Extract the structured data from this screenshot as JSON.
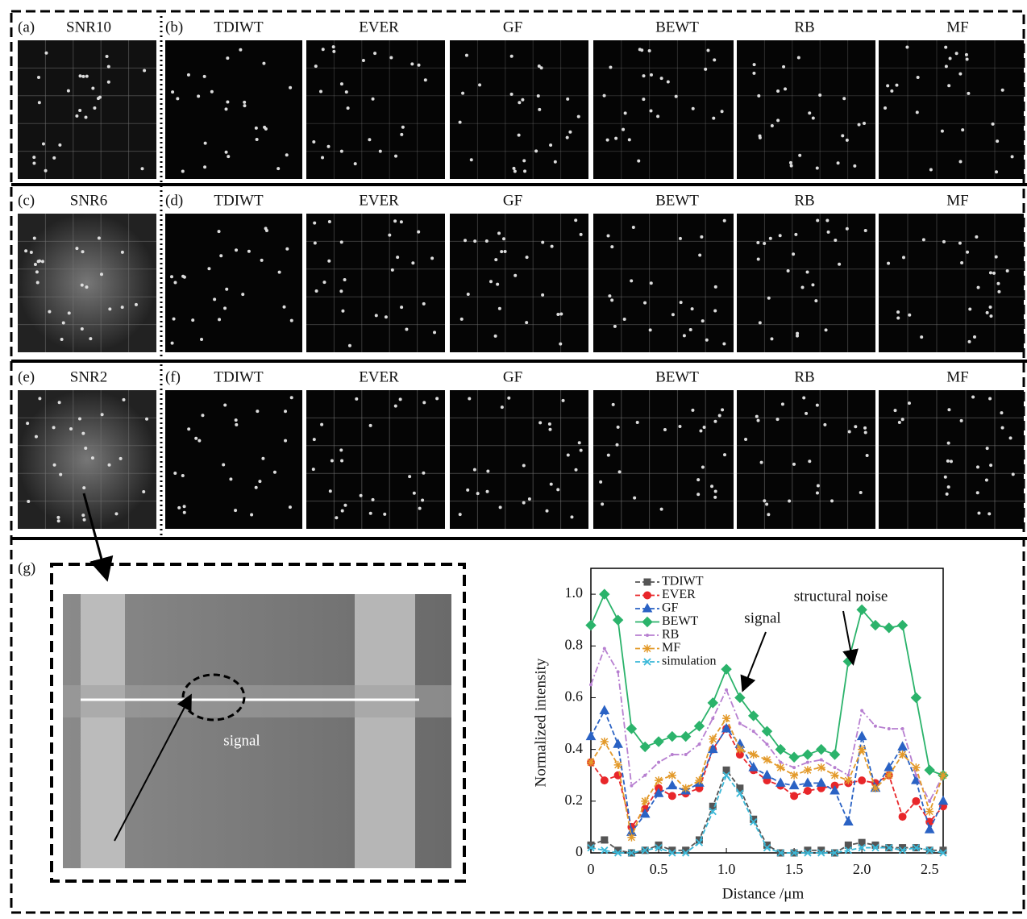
{
  "rows": [
    {
      "left_tag": "(a)",
      "left_title": "SNR10",
      "right_tag": "(b)",
      "titles": [
        "TDIWT",
        "EVER",
        "GF",
        "BEWT",
        "RB",
        "MF"
      ]
    },
    {
      "left_tag": "(c)",
      "left_title": "SNR6",
      "right_tag": "(d)",
      "titles": [
        "TDIWT",
        "EVER",
        "GF",
        "BEWT",
        "RB",
        "MF"
      ]
    },
    {
      "left_tag": "(e)",
      "left_title": "SNR2",
      "right_tag": "(f)",
      "titles": [
        "TDIWT",
        "EVER",
        "GF",
        "BEWT",
        "RB",
        "MF"
      ]
    }
  ],
  "zoom": {
    "tag": "(g)",
    "annotation": "signal"
  },
  "chart_data": {
    "type": "line",
    "x_label": "Distance /μm",
    "y_label": "Normalized intensity",
    "annotations": [
      "signal",
      "structural noise"
    ],
    "x": [
      0,
      0.1,
      0.2,
      0.3,
      0.4,
      0.5,
      0.6,
      0.7,
      0.8,
      0.9,
      1.0,
      1.1,
      1.2,
      1.3,
      1.4,
      1.5,
      1.6,
      1.7,
      1.8,
      1.9,
      2.0,
      2.1,
      2.2,
      2.3,
      2.4,
      2.5,
      2.6
    ],
    "xlim": [
      0,
      2.6
    ],
    "xticks": [
      0,
      0.5,
      {
        "value": 1,
        "label": "1.0"
      },
      1.5,
      {
        "value": 2,
        "label": "2.0"
      },
      2.5
    ],
    "ylim": [
      0,
      1.1
    ],
    "yticks": [
      0,
      0.2,
      0.4,
      0.6,
      0.8,
      {
        "value": 1,
        "label": "1.0"
      }
    ],
    "legend": "top-left",
    "series": [
      {
        "name": "TDIWT",
        "color": "#555555",
        "marker": "square",
        "line_style": "dashed",
        "values": [
          0.03,
          0.05,
          0.01,
          0,
          0.01,
          0.03,
          0.01,
          0.01,
          0.05,
          0.18,
          0.32,
          0.25,
          0.13,
          0.03,
          0,
          0,
          0.01,
          0.01,
          0,
          0.03,
          0.04,
          0.03,
          0.02,
          0.02,
          0.02,
          0.01,
          0.01
        ]
      },
      {
        "name": "EVER",
        "color": "#e8262a",
        "marker": "circle",
        "line_style": "dashed",
        "values": [
          0.35,
          0.28,
          0.3,
          0.1,
          0.17,
          0.25,
          0.22,
          0.23,
          0.25,
          0.4,
          0.48,
          0.38,
          0.32,
          0.28,
          0.26,
          0.22,
          0.24,
          0.25,
          0.26,
          0.27,
          0.28,
          0.27,
          0.3,
          0.14,
          0.2,
          0.12,
          0.18
        ]
      },
      {
        "name": "GF",
        "color": "#2a62c4",
        "marker": "triangle",
        "line_style": "dashed",
        "values": [
          0.45,
          0.55,
          0.42,
          0.08,
          0.15,
          0.23,
          0.26,
          0.24,
          0.27,
          0.4,
          0.48,
          0.42,
          0.33,
          0.3,
          0.27,
          0.26,
          0.27,
          0.27,
          0.24,
          0.12,
          0.45,
          0.25,
          0.33,
          0.41,
          0.28,
          0.09,
          0.2
        ]
      },
      {
        "name": "BEWT",
        "color": "#2bb36b",
        "marker": "diamond",
        "line_style": "solid",
        "values": [
          0.88,
          1.0,
          0.9,
          0.48,
          0.41,
          0.43,
          0.45,
          0.45,
          0.49,
          0.58,
          0.71,
          0.6,
          0.53,
          0.47,
          0.4,
          0.37,
          0.38,
          0.4,
          0.38,
          0.74,
          0.94,
          0.88,
          0.87,
          0.88,
          0.6,
          0.32,
          0.3
        ]
      },
      {
        "name": "RB",
        "color": "#b77fd0",
        "marker": "none",
        "line_style": "dashdot",
        "values": [
          0.65,
          0.79,
          0.7,
          0.26,
          0.3,
          0.35,
          0.38,
          0.38,
          0.42,
          0.52,
          0.63,
          0.5,
          0.47,
          0.42,
          0.35,
          0.33,
          0.35,
          0.36,
          0.33,
          0.3,
          0.55,
          0.49,
          0.48,
          0.48,
          0.3,
          0.2,
          0.3
        ]
      },
      {
        "name": "MF",
        "color": "#e39a2a",
        "marker": "star",
        "line_style": "dashed",
        "values": [
          0.35,
          0.43,
          0.34,
          0.06,
          0.2,
          0.28,
          0.3,
          0.25,
          0.28,
          0.44,
          0.52,
          0.4,
          0.38,
          0.36,
          0.33,
          0.3,
          0.32,
          0.33,
          0.3,
          0.28,
          0.4,
          0.25,
          0.3,
          0.38,
          0.33,
          0.16,
          0.3
        ]
      },
      {
        "name": "simulation",
        "color": "#3ab8d8",
        "marker": "x",
        "line_style": "dashed",
        "values": [
          0.02,
          0.01,
          0,
          0,
          0.01,
          0.02,
          0,
          0,
          0.04,
          0.16,
          0.3,
          0.23,
          0.12,
          0.02,
          0,
          0,
          0,
          0,
          0,
          0.01,
          0.02,
          0.02,
          0.02,
          0.01,
          0.02,
          0.01,
          0
        ]
      }
    ]
  }
}
